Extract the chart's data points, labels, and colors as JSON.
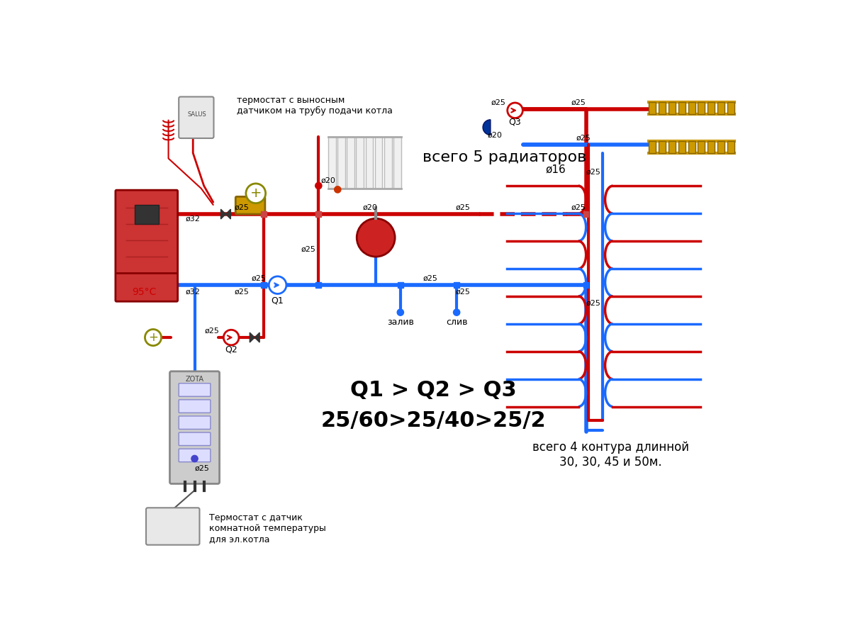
{
  "bg_color": "#ffffff",
  "red": "#cc0000",
  "blue": "#1a6aff",
  "pipe_lw_thick": 4,
  "pipe_lw_med": 3,
  "label_q1q2q3": "Q1 > Q2 > Q3",
  "label_flow": "25/60>25/40>25/2",
  "label_radiators": "всего 5 радиаторов",
  "label_circuits": "всего 4 контура длинной\n30, 30, 45 и 50м.",
  "label_thermostat_top": "термостат с выносным\nдатчиком на трубу подачи котла",
  "label_thermostat_bot": "Термостат с датчик\nкомнатной температуры\nдля эл.котла",
  "label_95c": "95°С",
  "label_phi16": "ø16",
  "label_zaliv": "залив",
  "label_sliv": "слив",
  "label_q1": "Q1",
  "label_q2": "Q2",
  "label_q3": "Q3",
  "label_phi32a": "ø32",
  "label_phi32b": "ø32",
  "label_phi25": "ø25",
  "label_phi20": "ø20",
  "label_phi20b": "ø20"
}
